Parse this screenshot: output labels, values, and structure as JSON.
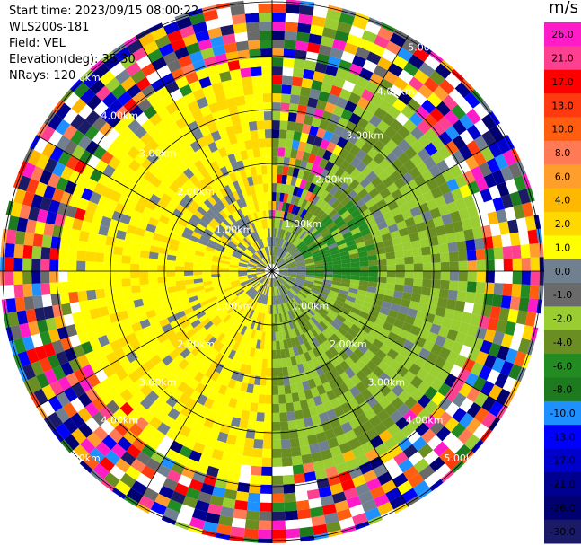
{
  "info": {
    "start_time": "Start time: 2023/09/15 08:00:22",
    "station": "WLS200s-181",
    "field": "Field: VEL",
    "elevation": "Elevation(deg): 35.30",
    "nrays": "NRays: 120"
  },
  "chart_data": {
    "type": "heatmap",
    "projection": "polar",
    "field": "VEL",
    "unit": "m/s",
    "n_rays": 120,
    "elevation_deg": 35.3,
    "range_rings_km": [
      1.0,
      2.0,
      3.0,
      4.0,
      5.0
    ],
    "ring_labels": [
      "1.00km",
      "2.00km",
      "3.00km",
      "4.00km",
      "5.00km"
    ],
    "spokes_deg": [
      0,
      30,
      60,
      90,
      120,
      150,
      180,
      210,
      240,
      270,
      300,
      330
    ],
    "pattern": [
      {
        "sector": "west (azimuth 180-360)",
        "value_range_ms": [
          2.0,
          4.0
        ]
      },
      {
        "sector": "east (azimuth 0-180)",
        "value_range_ms": [
          -4.0,
          -1.0
        ]
      },
      {
        "sector": "east-northeast near range",
        "value_range_ms": [
          -8.0,
          -6.0
        ]
      },
      {
        "sector": "beyond ~3.5 km",
        "value_range_ms": [
          -30.0,
          26.0
        ],
        "note": "noise"
      }
    ],
    "colorbar": {
      "title": "m/s",
      "tick_labels": [
        "26.0",
        "21.0",
        "17.0",
        "13.0",
        "10.0",
        "8.0",
        "6.0",
        "4.0",
        "2.0",
        "1.0",
        "0.0",
        "-1.0",
        "-2.0",
        "-4.0",
        "-6.0",
        "-8.0",
        "-10.0",
        "-13.0",
        "-17.0",
        "-21.0",
        "-26.0",
        "-30.0"
      ],
      "colors": [
        "#ff1cc8",
        "#ff3f8f",
        "#ff0000",
        "#ff3a10",
        "#ff5e10",
        "#ff7a55",
        "#ff9e2a",
        "#ffb800",
        "#ffd800",
        "#ffff00",
        "#708090",
        "#6a6a6a",
        "#9acd32",
        "#6b8e23",
        "#228b22",
        "#1e7a1e",
        "#1e90ff",
        "#0000ff",
        "#0000cd",
        "#000090",
        "#000070",
        "#1a1a66"
      ]
    }
  }
}
